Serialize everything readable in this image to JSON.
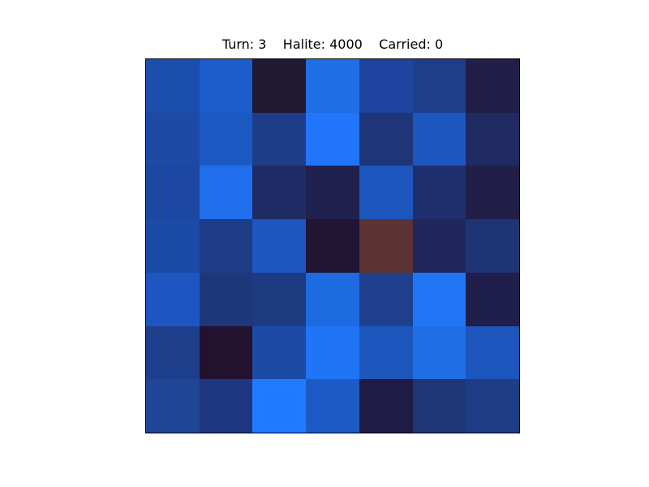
{
  "status": {
    "turn_label": "Turn:",
    "turn": "3",
    "halite_label": "Halite:",
    "halite": "4000",
    "carried_label": "Carried:",
    "carried": "0"
  },
  "board": {
    "rows": 7,
    "cols": 7,
    "cells": [
      [
        "#1c4fad",
        "#1c5ccb",
        "#211834",
        "#206ee6",
        "#1d45a0",
        "#1e3d8a",
        "#211f48"
      ],
      [
        "#1c4aa4",
        "#1c59c2",
        "#1e3d88",
        "#2075fb",
        "#1f3577",
        "#1c57bf",
        "#1f2b62"
      ],
      [
        "#1c47a0",
        "#206eeb",
        "#1f2b64",
        "#20214e",
        "#1c56bd",
        "#1f2f6e",
        "#211f47"
      ],
      [
        "#1c4ba7",
        "#1e3c87",
        "#1c56be",
        "#211434",
        "#5b3333",
        "#1f275d",
        "#1f3475"
      ],
      [
        "#1d56c1",
        "#1e3779",
        "#1e3a81",
        "#1e6ae1",
        "#1e408e",
        "#2076f5",
        "#201f4c"
      ],
      [
        "#1e3f8c",
        "#22112f",
        "#1c4aa5",
        "#2074f6",
        "#1c56bd",
        "#1f6ee6",
        "#1c55bb"
      ],
      [
        "#1e4596",
        "#1e3780",
        "#1f7bff",
        "#1c5bc6",
        "#201b44",
        "#1f3576",
        "#1f3c86"
      ]
    ]
  }
}
